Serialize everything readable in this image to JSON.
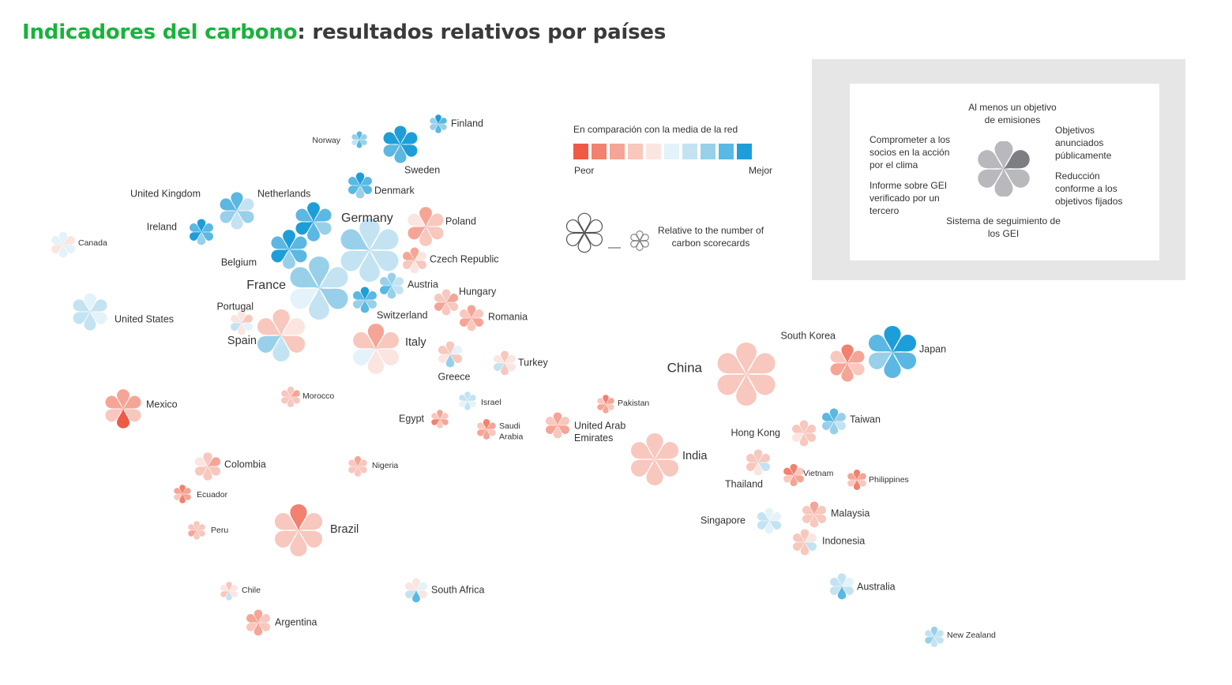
{
  "title": {
    "highlight": "Indicadores del carbono",
    "rest": ": resultados relativos por países"
  },
  "scale": {
    "title": "En comparación con la media de la red",
    "low": "Peor",
    "high": "Mejor",
    "colors": [
      "#ee5a45",
      "#f2816f",
      "#f5a596",
      "#f8c7bd",
      "#fbe5e0",
      "#e4f2f9",
      "#c3e3f2",
      "#98d0ea",
      "#5ab8e2",
      "#1e9ed8"
    ]
  },
  "size_note": "Relative to the number of carbon scorecards",
  "legend": {
    "top": "Al menos un objetivo de emisiones",
    "right1": "Objetivos anunciados públicamente",
    "right2": "Reducción conforme a los objetivos fijados",
    "bottom": "Sistema de seguimiento de los GEI",
    "left2": "Informe sobre GEI verificado por un tercero",
    "left1": "Comprometer a los socios en la acción por el clima"
  },
  "chart_data": {
    "type": "scatter",
    "description_fields": [
      "name",
      "size",
      "petals"
    ],
    "petal_order": [
      "Al menos un objetivo de emisiones",
      "Objetivos anunciados públicamente",
      "Reducción conforme a los objetivos fijados",
      "Sistema de seguimiento de los GEI",
      "Informe sobre GEI verificado por un tercero",
      "Comprometer a los socios en la acción por el clima"
    ],
    "scale_note": "petal values 0 (Peor) to 9 (Mejor); size relative to number of carbon scorecards",
    "countries": [
      {
        "name": "Finland",
        "size": 1.0,
        "petals": [
          9,
          8,
          7,
          8,
          7,
          7
        ]
      },
      {
        "name": "Norway",
        "size": 0.9,
        "petals": [
          8,
          7,
          7,
          8,
          6,
          7
        ]
      },
      {
        "name": "Sweden",
        "size": 2.0,
        "petals": [
          9,
          9,
          9,
          8,
          8,
          9
        ]
      },
      {
        "name": "Denmark",
        "size": 1.4,
        "petals": [
          9,
          8,
          8,
          7,
          8,
          8
        ]
      },
      {
        "name": "United Kingdom",
        "size": 2.0,
        "petals": [
          8,
          6,
          7,
          6,
          7,
          8
        ]
      },
      {
        "name": "Netherlands",
        "size": 2.1,
        "petals": [
          9,
          8,
          7,
          8,
          9,
          8
        ]
      },
      {
        "name": "Germany",
        "size": 3.4,
        "petals": [
          6,
          6,
          6,
          6,
          6,
          7
        ]
      },
      {
        "name": "Poland",
        "size": 2.1,
        "petals": [
          2,
          3,
          3,
          3,
          2,
          4
        ]
      },
      {
        "name": "Ireland",
        "size": 1.4,
        "petals": [
          9,
          8,
          8,
          7,
          9,
          8
        ]
      },
      {
        "name": "Canada",
        "size": 1.4,
        "petals": [
          5,
          4,
          5,
          5,
          4,
          5
        ]
      },
      {
        "name": "Belgium",
        "size": 2.1,
        "petals": [
          9,
          8,
          8,
          7,
          9,
          8
        ]
      },
      {
        "name": "Czech Republic",
        "size": 1.4,
        "petals": [
          2,
          4,
          3,
          4,
          3,
          2
        ]
      },
      {
        "name": "France",
        "size": 3.4,
        "petals": [
          7,
          6,
          7,
          6,
          5,
          7
        ]
      },
      {
        "name": "Austria",
        "size": 1.4,
        "petals": [
          7,
          6,
          6,
          7,
          8,
          7
        ]
      },
      {
        "name": "Hungary",
        "size": 1.4,
        "petals": [
          3,
          2,
          3,
          3,
          2,
          3
        ]
      },
      {
        "name": "Switzerland",
        "size": 1.4,
        "petals": [
          9,
          8,
          7,
          8,
          7,
          8
        ]
      },
      {
        "name": "Romania",
        "size": 1.4,
        "petals": [
          2,
          3,
          2,
          3,
          2,
          3
        ]
      },
      {
        "name": "United States",
        "size": 2.0,
        "petals": [
          5,
          6,
          5,
          6,
          6,
          6
        ]
      },
      {
        "name": "Portugal",
        "size": 1.3,
        "petals": [
          4,
          3,
          5,
          4,
          6,
          4
        ]
      },
      {
        "name": "Spain",
        "size": 2.8,
        "petals": [
          3,
          4,
          3,
          6,
          7,
          3
        ]
      },
      {
        "name": "Italy",
        "size": 2.7,
        "petals": [
          2,
          3,
          4,
          4,
          5,
          3
        ]
      },
      {
        "name": "Greece",
        "size": 1.4,
        "petals": [
          3,
          5,
          3,
          7,
          4,
          3
        ]
      },
      {
        "name": "Turkey",
        "size": 1.3,
        "petals": [
          3,
          4,
          4,
          3,
          6,
          4
        ]
      },
      {
        "name": "South Korea",
        "size": 2.0,
        "petals": [
          1,
          2,
          3,
          2,
          2,
          3
        ]
      },
      {
        "name": "Japan",
        "size": 2.8,
        "petals": [
          9,
          9,
          8,
          8,
          7,
          8
        ]
      },
      {
        "name": "China",
        "size": 3.4,
        "petals": [
          3,
          3,
          3,
          3,
          3,
          3
        ]
      },
      {
        "name": "Mexico",
        "size": 2.1,
        "petals": [
          2,
          2,
          3,
          0,
          3,
          2
        ]
      },
      {
        "name": "Morocco",
        "size": 1.1,
        "petals": [
          3,
          2,
          3,
          3,
          3,
          3
        ]
      },
      {
        "name": "Israel",
        "size": 1.0,
        "petals": [
          6,
          6,
          5,
          6,
          5,
          6
        ]
      },
      {
        "name": "Pakistan",
        "size": 1.0,
        "petals": [
          1,
          2,
          3,
          2,
          2,
          3
        ]
      },
      {
        "name": "Egypt",
        "size": 1.0,
        "petals": [
          2,
          3,
          2,
          3,
          1,
          3
        ]
      },
      {
        "name": "Saudi Arabia",
        "size": 1.1,
        "petals": [
          1,
          2,
          3,
          2,
          2,
          3
        ]
      },
      {
        "name": "United Arab Emirates",
        "size": 1.4,
        "petals": [
          2,
          3,
          2,
          3,
          2,
          3
        ]
      },
      {
        "name": "Taiwan",
        "size": 1.4,
        "petals": [
          8,
          7,
          6,
          7,
          7,
          8
        ]
      },
      {
        "name": "Hong Kong",
        "size": 1.4,
        "petals": [
          3,
          3,
          3,
          3,
          4,
          3
        ]
      },
      {
        "name": "India",
        "size": 2.8,
        "petals": [
          3,
          3,
          3,
          3,
          3,
          3
        ]
      },
      {
        "name": "Colombia",
        "size": 1.5,
        "petals": [
          3,
          2,
          3,
          3,
          3,
          4
        ]
      },
      {
        "name": "Nigeria",
        "size": 1.1,
        "petals": [
          2,
          3,
          3,
          3,
          3,
          3
        ]
      },
      {
        "name": "Thailand",
        "size": 1.4,
        "petals": [
          3,
          3,
          6,
          4,
          3,
          3
        ]
      },
      {
        "name": "Vietnam",
        "size": 1.2,
        "petals": [
          1,
          3,
          2,
          2,
          3,
          1
        ]
      },
      {
        "name": "Philippines",
        "size": 1.1,
        "petals": [
          1,
          2,
          3,
          1,
          3,
          2
        ]
      },
      {
        "name": "Ecuador",
        "size": 1.0,
        "petals": [
          1,
          2,
          2,
          1,
          3,
          2
        ]
      },
      {
        "name": "Peru",
        "size": 1.0,
        "petals": [
          3,
          3,
          3,
          3,
          2,
          3
        ]
      },
      {
        "name": "Brazil",
        "size": 2.8,
        "petals": [
          1,
          3,
          3,
          3,
          3,
          3
        ]
      },
      {
        "name": "Singapore",
        "size": 1.4,
        "petals": [
          5,
          5,
          6,
          5,
          6,
          6
        ]
      },
      {
        "name": "Malaysia",
        "size": 1.4,
        "petals": [
          2,
          3,
          3,
          3,
          3,
          3
        ]
      },
      {
        "name": "Indonesia",
        "size": 1.4,
        "petals": [
          3,
          4,
          6,
          3,
          3,
          3
        ]
      },
      {
        "name": "Chile",
        "size": 1.0,
        "petals": [
          3,
          4,
          4,
          6,
          3,
          4
        ]
      },
      {
        "name": "South Africa",
        "size": 1.3,
        "petals": [
          4,
          5,
          4,
          8,
          6,
          4
        ]
      },
      {
        "name": "Australia",
        "size": 1.4,
        "petals": [
          6,
          5,
          6,
          8,
          6,
          6
        ]
      },
      {
        "name": "Argentina",
        "size": 1.4,
        "petals": [
          2,
          3,
          3,
          2,
          3,
          2
        ]
      },
      {
        "name": "New Zealand",
        "size": 1.1,
        "petals": [
          7,
          6,
          6,
          6,
          7,
          6
        ]
      }
    ]
  }
}
